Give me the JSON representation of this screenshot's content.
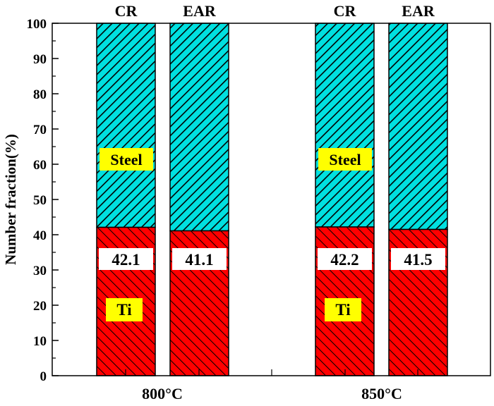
{
  "chart_data": {
    "type": "bar",
    "stacked": true,
    "title": "",
    "xlabel": "",
    "ylabel": "Number fraction(%)",
    "ylim": [
      0,
      100
    ],
    "yticks": [
      0,
      10,
      20,
      30,
      40,
      50,
      60,
      70,
      80,
      90,
      100
    ],
    "groups": [
      "800°C",
      "850°C"
    ],
    "bars": [
      {
        "group": "800°C",
        "label": "CR",
        "ti": 42.1,
        "steel": 57.9,
        "value_label": "42.1"
      },
      {
        "group": "800°C",
        "label": "EAR",
        "ti": 41.1,
        "steel": 58.9,
        "value_label": "41.1"
      },
      {
        "group": "850°C",
        "label": "CR",
        "ti": 42.2,
        "steel": 57.8,
        "value_label": "42.2"
      },
      {
        "group": "850°C",
        "label": "EAR",
        "ti": 41.5,
        "steel": 58.5,
        "value_label": "41.5"
      }
    ],
    "series": [
      {
        "name": "Ti",
        "color": "#ff0000",
        "hatch": "forward"
      },
      {
        "name": "Steel",
        "color": "#00e0e0",
        "hatch": "backward"
      }
    ],
    "annotations": {
      "steel": "Steel",
      "ti": "Ti"
    },
    "grid": false
  }
}
